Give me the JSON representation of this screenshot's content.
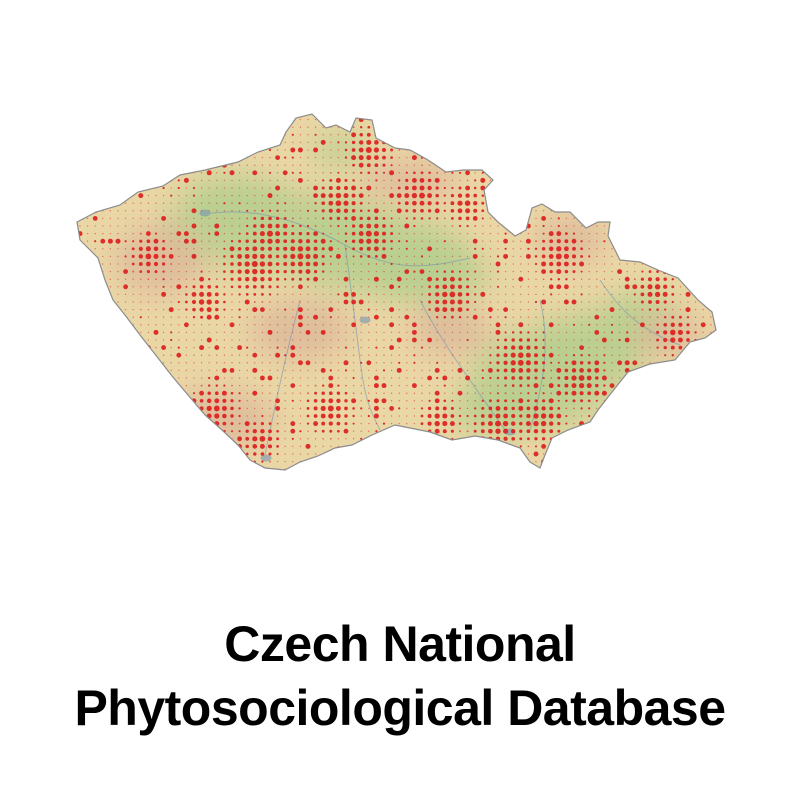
{
  "title": {
    "line1": "Czech National",
    "line2": "Phytosociological Database"
  },
  "map": {
    "colors": {
      "lowland": "#b7cf8f",
      "upland": "#ead7a6",
      "highland": "#dcb89a",
      "dot": "#dd1c1c",
      "water": "#6f8fb3",
      "border": "#8c8c8c"
    }
  }
}
